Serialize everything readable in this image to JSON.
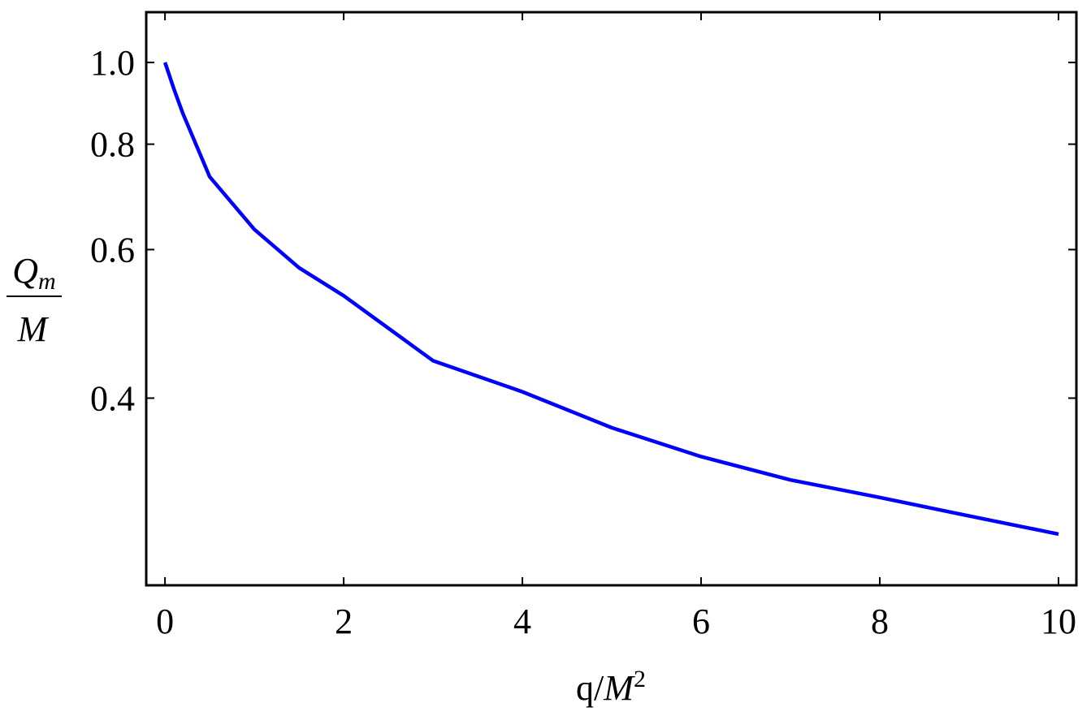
{
  "chart_data": {
    "type": "line",
    "xlabel": [
      "q/",
      "M",
      "2"
    ],
    "ylabel": {
      "numerator": [
        "Q",
        "m"
      ],
      "denominator": "M"
    },
    "x": [
      0,
      0.1,
      0.2,
      0.5,
      1,
      1.5,
      2,
      3,
      4,
      5,
      6,
      7,
      8,
      9,
      10
    ],
    "series": [
      {
        "color": "#0000ff",
        "values": [
          1.0,
          0.93,
          0.87,
          0.732,
          0.634,
          0.571,
          0.529,
          0.443,
          0.407,
          0.369,
          0.341,
          0.32,
          0.305,
          0.29,
          0.276
        ]
      }
    ],
    "xlim": [
      -0.21,
      10.2
    ],
    "xticks": [
      0,
      2,
      4,
      6,
      8,
      10
    ],
    "ylim": [
      0.24,
      1.147
    ],
    "ylog": true,
    "yticks": [
      0.4,
      0.6,
      0.8,
      {
        "value": 1,
        "label": "1.0"
      }
    ]
  }
}
